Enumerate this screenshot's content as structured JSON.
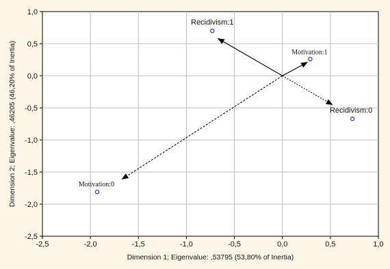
{
  "chart_data": {
    "type": "scatter",
    "xlabel": "Dimension 1; Eigenvalue: ,53795 (53,80% of Inertia)",
    "ylabel": "Dimension 2; Eigenvalue: ,46205 (46,20% of Inertia)",
    "xlim": [
      -2.5,
      1.0
    ],
    "ylim": [
      -2.5,
      1.0
    ],
    "grid": true,
    "x_ticks": [
      "-2,5",
      "-2,0",
      "-1,5",
      "-1,0",
      "-0,5",
      "0,0",
      "0,5",
      "1,0"
    ],
    "y_ticks": [
      "1,0",
      "0,5",
      "0,0",
      "-0,5",
      "-1,0",
      "-1,5",
      "-2,0",
      "-2,5"
    ],
    "marker_color": "#1f2fd6",
    "points": [
      {
        "label": "Recidivism:1",
        "x": -0.73,
        "y": 0.7
      },
      {
        "label": "Motivation:1",
        "x": 0.29,
        "y": 0.26
      },
      {
        "label": "Recidivism:0",
        "x": 0.73,
        "y": -0.67
      },
      {
        "label": "Motivation:0",
        "x": -1.93,
        "y": -1.81
      }
    ],
    "arrows": [
      {
        "from": [
          0.0,
          0.0
        ],
        "to": [
          -0.67,
          0.58
        ],
        "style": "solid"
      },
      {
        "from": [
          0.0,
          0.0
        ],
        "to": [
          0.52,
          -0.45
        ],
        "style": "dotted"
      },
      {
        "from": [
          0.0,
          0.0
        ],
        "to": [
          0.26,
          0.21
        ],
        "style": "solid"
      },
      {
        "from": [
          0.0,
          0.0
        ],
        "to": [
          -1.67,
          -1.61
        ],
        "style": "dashed"
      }
    ]
  }
}
